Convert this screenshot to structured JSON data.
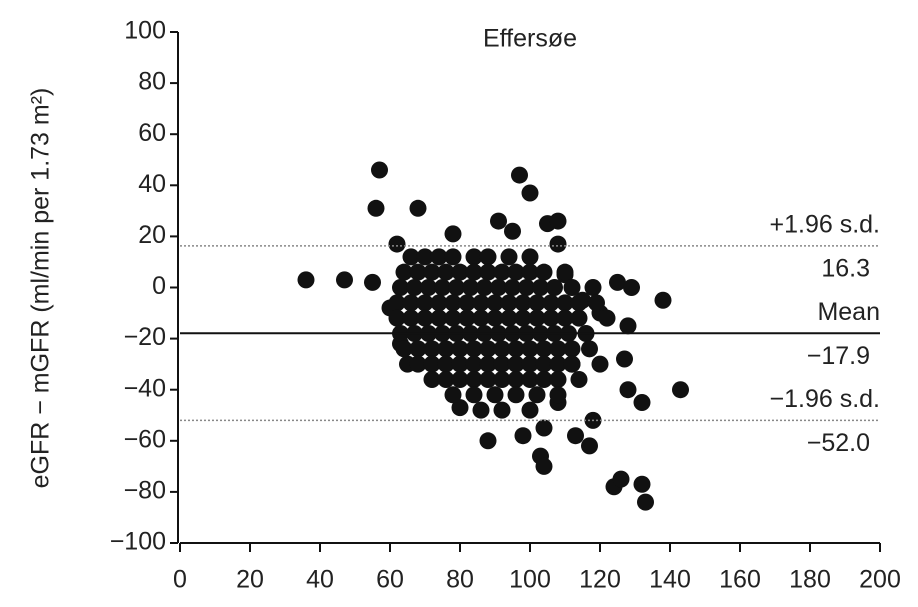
{
  "chart_data": {
    "type": "scatter",
    "title": "Effersøe",
    "y_label": "eGFR − mGFR (ml/min per 1.73 m²)",
    "xlim": [
      0,
      200
    ],
    "xticks": [
      0,
      20,
      40,
      60,
      80,
      100,
      120,
      140,
      160,
      180,
      200
    ],
    "ylim": [
      -100,
      100
    ],
    "yticks": [
      {
        "value": -100,
        "label": "−100"
      },
      {
        "value": -80,
        "label": "−80"
      },
      {
        "value": -60,
        "label": "−60"
      },
      {
        "value": -40,
        "label": "−40"
      },
      {
        "value": -20,
        "label": "−20"
      },
      0,
      20,
      40,
      60,
      80,
      100
    ],
    "color": "#111111",
    "grid": false,
    "reference_lines": [
      {
        "name": "+1.96 s.d.",
        "value": 16.3,
        "value_label": "16.3",
        "style": "dotted"
      },
      {
        "name": "Mean",
        "value": -17.9,
        "value_label": "−17.9",
        "style": "solid"
      },
      {
        "name": "−1.96 s.d.",
        "value": -52.0,
        "value_label": "−52.0",
        "style": "dotted"
      }
    ],
    "points": [
      [
        36,
        3
      ],
      [
        47,
        3
      ],
      [
        55,
        2
      ],
      [
        56,
        31
      ],
      [
        57,
        46
      ],
      [
        60,
        -8
      ],
      [
        62,
        17
      ],
      [
        63,
        -22
      ],
      [
        65,
        -30
      ],
      [
        68,
        31
      ],
      [
        78,
        21
      ],
      [
        80,
        -47
      ],
      [
        88,
        -60
      ],
      [
        91,
        26
      ],
      [
        95,
        22
      ],
      [
        97,
        44
      ],
      [
        100,
        37
      ],
      [
        98,
        -58
      ],
      [
        103,
        -66
      ],
      [
        104,
        -70
      ],
      [
        104,
        -55
      ],
      [
        105,
        25
      ],
      [
        108,
        26
      ],
      [
        108,
        17
      ],
      [
        110,
        5
      ],
      [
        115,
        -5
      ],
      [
        117,
        -62
      ],
      [
        120,
        -10
      ],
      [
        124,
        -78
      ],
      [
        126,
        -75
      ],
      [
        125,
        2
      ],
      [
        128,
        -15
      ],
      [
        128,
        -40
      ],
      [
        129,
        0
      ],
      [
        132,
        -45
      ],
      [
        132,
        -77
      ],
      [
        133,
        -84
      ],
      [
        138,
        -5
      ],
      [
        143,
        -40
      ],
      [
        127,
        -28
      ],
      [
        118,
        -52
      ],
      [
        113,
        -58
      ],
      [
        108,
        -45
      ],
      [
        112,
        -30
      ],
      [
        120,
        -30
      ],
      [
        66,
        12
      ],
      [
        70,
        12
      ],
      [
        74,
        12
      ],
      [
        78,
        12
      ],
      [
        84,
        12
      ],
      [
        88,
        12
      ],
      [
        94,
        12
      ],
      [
        100,
        12
      ],
      [
        64,
        6
      ],
      [
        68,
        6
      ],
      [
        72,
        6
      ],
      [
        76,
        6
      ],
      [
        80,
        6
      ],
      [
        84,
        6
      ],
      [
        88,
        6
      ],
      [
        92,
        6
      ],
      [
        96,
        6
      ],
      [
        100,
        6
      ],
      [
        104,
        6
      ],
      [
        110,
        6
      ],
      [
        63,
        0
      ],
      [
        67,
        0
      ],
      [
        71,
        0
      ],
      [
        75,
        0
      ],
      [
        79,
        0
      ],
      [
        83,
        0
      ],
      [
        87,
        0
      ],
      [
        91,
        0
      ],
      [
        95,
        0
      ],
      [
        99,
        0
      ],
      [
        103,
        0
      ],
      [
        107,
        0
      ],
      [
        112,
        0
      ],
      [
        118,
        0
      ],
      [
        62,
        -6
      ],
      [
        66,
        -6
      ],
      [
        70,
        -6
      ],
      [
        74,
        -6
      ],
      [
        78,
        -6
      ],
      [
        82,
        -6
      ],
      [
        86,
        -6
      ],
      [
        90,
        -6
      ],
      [
        94,
        -6
      ],
      [
        98,
        -6
      ],
      [
        102,
        -6
      ],
      [
        106,
        -6
      ],
      [
        110,
        -6
      ],
      [
        114,
        -6
      ],
      [
        119,
        -6
      ],
      [
        62,
        -12
      ],
      [
        66,
        -12
      ],
      [
        70,
        -12
      ],
      [
        74,
        -12
      ],
      [
        78,
        -12
      ],
      [
        82,
        -12
      ],
      [
        86,
        -12
      ],
      [
        90,
        -12
      ],
      [
        94,
        -12
      ],
      [
        98,
        -12
      ],
      [
        102,
        -12
      ],
      [
        106,
        -12
      ],
      [
        110,
        -12
      ],
      [
        114,
        -12
      ],
      [
        122,
        -12
      ],
      [
        63,
        -18
      ],
      [
        67,
        -18
      ],
      [
        71,
        -18
      ],
      [
        75,
        -18
      ],
      [
        79,
        -18
      ],
      [
        83,
        -18
      ],
      [
        87,
        -18
      ],
      [
        91,
        -18
      ],
      [
        95,
        -18
      ],
      [
        99,
        -18
      ],
      [
        103,
        -18
      ],
      [
        107,
        -18
      ],
      [
        111,
        -18
      ],
      [
        116,
        -18
      ],
      [
        64,
        -24
      ],
      [
        68,
        -24
      ],
      [
        72,
        -24
      ],
      [
        76,
        -24
      ],
      [
        80,
        -24
      ],
      [
        84,
        -24
      ],
      [
        88,
        -24
      ],
      [
        92,
        -24
      ],
      [
        96,
        -24
      ],
      [
        100,
        -24
      ],
      [
        104,
        -24
      ],
      [
        108,
        -24
      ],
      [
        112,
        -24
      ],
      [
        117,
        -24
      ],
      [
        68,
        -30
      ],
      [
        72,
        -30
      ],
      [
        76,
        -30
      ],
      [
        80,
        -30
      ],
      [
        84,
        -30
      ],
      [
        88,
        -30
      ],
      [
        92,
        -30
      ],
      [
        96,
        -30
      ],
      [
        100,
        -30
      ],
      [
        104,
        -30
      ],
      [
        108,
        -30
      ],
      [
        112,
        -30
      ],
      [
        72,
        -36
      ],
      [
        76,
        -36
      ],
      [
        80,
        -36
      ],
      [
        84,
        -36
      ],
      [
        88,
        -36
      ],
      [
        92,
        -36
      ],
      [
        96,
        -36
      ],
      [
        100,
        -36
      ],
      [
        104,
        -36
      ],
      [
        108,
        -36
      ],
      [
        114,
        -36
      ],
      [
        78,
        -42
      ],
      [
        84,
        -42
      ],
      [
        90,
        -42
      ],
      [
        96,
        -42
      ],
      [
        102,
        -42
      ],
      [
        108,
        -42
      ],
      [
        86,
        -48
      ],
      [
        92,
        -48
      ],
      [
        100,
        -48
      ]
    ]
  }
}
